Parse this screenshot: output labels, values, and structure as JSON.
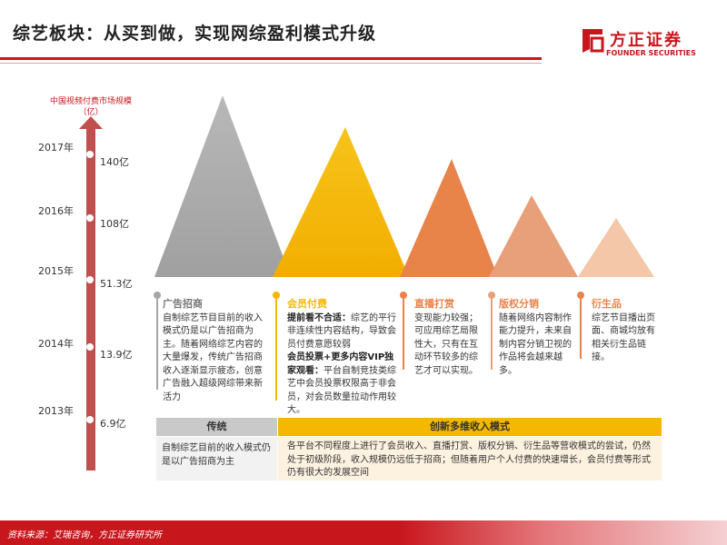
{
  "header": {
    "title": "综艺板块：从买到做，实现网综盈利模式升级",
    "logo_cn": "方正证券",
    "logo_en": "FOUNDER SECURITIES"
  },
  "axis": {
    "title": "中国视频付费市场规模（亿）",
    "points": [
      {
        "year": "2017年",
        "value": "140亿"
      },
      {
        "year": "2016年",
        "value": "108亿"
      },
      {
        "year": "2015年",
        "value": "51.3亿"
      },
      {
        "year": "2014年",
        "value": "13.9亿"
      },
      {
        "year": "2013年",
        "value": "6.9亿"
      }
    ]
  },
  "columns": [
    {
      "heading": "广告招商",
      "body": "自制综艺节目目前的收入模式仍是以广告招商为主。随着网络综艺内容的大量爆发，传统广告招商收入逐渐显示疲态，创意广告融入超级网综带来新活力"
    },
    {
      "heading": "会员付费",
      "p1_bold": "提前看不合适：",
      "p1": "综艺的平行非连续性内容结构，导致会员付费意愿较弱",
      "p2_bold": "会员投票+更多内容VIP独家观看：",
      "p2": "平台自制竞技类综艺中会员投票权限高于非会员，对会员数量拉动作用较大。"
    },
    {
      "heading": "直播打赏",
      "body": "变现能力较强；可应用综艺局限性大，只有在互动环节较多的综艺才可以实现。"
    },
    {
      "heading": "版权分销",
      "body": "随着网络内容制作能力提升，未来自制内容分销卫视的作品将会越来越多。"
    },
    {
      "heading": "衍生品",
      "body": "综艺节目播出页面、商城均放有相关衍生品链接。"
    }
  ],
  "table": {
    "left_header": "传统",
    "right_header": "创新多维收入模式",
    "left_text": "自制综艺目前的收入模式仍是以广告招商为主",
    "right_text": "各平台不同程度上进行了会员收入、直播打赏、版权分销、衍生品等营收模式的尝试，仍然处于初级阶段，收入规模仍远低于招商；但随着用户个人付费的快速增长，会员付费等形式仍有很大的发展空间"
  },
  "footer": {
    "source": "资料来源：艾瑞咨询，方正证券研究所"
  },
  "colors": {
    "brand_red": "#c8161d",
    "grey": "#a6a6a6",
    "yellow": "#f5b700",
    "orange": "#e8834a",
    "salmon": "#e8a07a",
    "peach": "#f3c7a8"
  }
}
